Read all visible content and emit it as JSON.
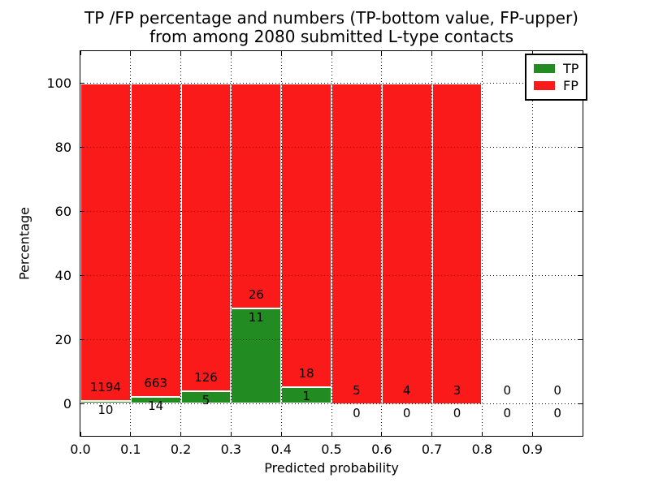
{
  "figure": {
    "title_line1": "TP /FP percentage and numbers (TP-bottom value, FP-upper)",
    "title_line2": "from among 2080 submitted L-type contacts"
  },
  "chart_data": {
    "type": "bar",
    "subtype": "stacked-percentage-histogram",
    "title": "TP /FP percentage and numbers (TP-bottom value, FP-upper) from among 2080 submitted L-type contacts",
    "total_submitted": 2080,
    "xlabel": "Predicted probability",
    "ylabel": "Percentage",
    "xlim": [
      0,
      1
    ],
    "ylim": [
      -10,
      110
    ],
    "xticks": [
      "0.0",
      "0.1",
      "0.2",
      "0.3",
      "0.4",
      "0.5",
      "0.6",
      "0.7",
      "0.8",
      "0.9"
    ],
    "yticks": [
      0,
      20,
      40,
      60,
      80,
      100
    ],
    "grid": true,
    "grid_style": "dotted",
    "legend_position": "upper right",
    "colors": {
      "tp": "#228b22",
      "fp": "#fa1a1a",
      "edge": "#ffffff"
    },
    "bins": [
      {
        "range": [
          0.0,
          0.1
        ],
        "tp": 10,
        "fp": 1194
      },
      {
        "range": [
          0.1,
          0.2
        ],
        "tp": 14,
        "fp": 663
      },
      {
        "range": [
          0.2,
          0.3
        ],
        "tp": 5,
        "fp": 126
      },
      {
        "range": [
          0.3,
          0.4
        ],
        "tp": 11,
        "fp": 26
      },
      {
        "range": [
          0.4,
          0.5
        ],
        "tp": 1,
        "fp": 18
      },
      {
        "range": [
          0.5,
          0.6
        ],
        "tp": 0,
        "fp": 5
      },
      {
        "range": [
          0.6,
          0.7
        ],
        "tp": 0,
        "fp": 4
      },
      {
        "range": [
          0.7,
          0.8
        ],
        "tp": 0,
        "fp": 3
      },
      {
        "range": [
          0.8,
          0.9
        ],
        "tp": 0,
        "fp": 0
      },
      {
        "range": [
          0.9,
          1.0
        ],
        "tp": 0,
        "fp": 0
      }
    ],
    "series": [
      {
        "name": "TP",
        "color": "#228b22",
        "values_percent": [
          0.83,
          2.07,
          3.82,
          29.73,
          5.26,
          0,
          0,
          0,
          0,
          0
        ]
      },
      {
        "name": "FP",
        "color": "#fa1a1a",
        "values_percent": [
          99.17,
          97.93,
          96.18,
          70.27,
          94.74,
          100,
          100,
          100,
          0,
          0
        ]
      }
    ]
  },
  "legend": {
    "items": [
      {
        "label": "TP",
        "color": "#228b22"
      },
      {
        "label": "FP",
        "color": "#fa1a1a"
      }
    ]
  }
}
